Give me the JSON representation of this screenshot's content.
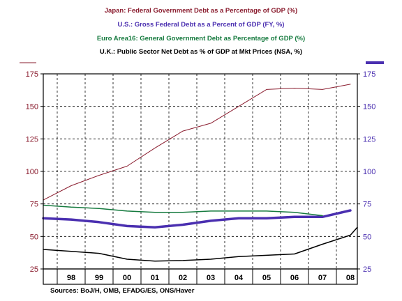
{
  "chart_data": {
    "type": "line",
    "legend": [
      {
        "label": "Japan: Federal Government Debt as a Percentage of GDP (%)",
        "color": "#8a1c2e"
      },
      {
        "label": "U.S.: Gross Federal Debt as a Percent of GDP (FY, %)",
        "color": "#4a2fb0"
      },
      {
        "label": "Euro Area16: General Government Debt as Percentage of GDP (%)",
        "color": "#157a3e"
      },
      {
        "label": "U.K.: Public Sector Net Debt as % of GDP at Mkt Prices (NSA, %)",
        "color": "#000000"
      }
    ],
    "categories": [
      "98",
      "99",
      "00",
      "01",
      "02",
      "03",
      "04",
      "05",
      "06",
      "07",
      "08"
    ],
    "x_range": [
      1997.5,
      2008.75
    ],
    "ylim": [
      25,
      175
    ],
    "yticks": [
      "25",
      "50",
      "75",
      "100",
      "125",
      "150",
      "175"
    ],
    "grid": true,
    "series": [
      {
        "name": "Japan",
        "color": "#8a1c2e",
        "width": 1,
        "x": [
          1997.5,
          1998.5,
          1999.5,
          2000.5,
          2001.5,
          2002.5,
          2003.5,
          2004.5,
          2005.5,
          2006.5,
          2007.5,
          2008.5
        ],
        "y": [
          78,
          89,
          97,
          104,
          118,
          131,
          137,
          150,
          163,
          164,
          163,
          167
        ]
      },
      {
        "name": "U.S.",
        "color": "#4a2fb0",
        "width": 3.5,
        "x": [
          1997.5,
          1998.5,
          1999.5,
          2000.5,
          2001.5,
          2002.5,
          2003.5,
          2004.5,
          2005.5,
          2006.5,
          2007.5,
          2008.5
        ],
        "y": [
          64,
          63,
          61,
          58,
          57,
          59,
          62,
          64,
          64,
          65,
          65,
          70
        ]
      },
      {
        "name": "Euro Area16",
        "color": "#157a3e",
        "width": 1.5,
        "x": [
          1997.5,
          1998.5,
          1999.5,
          2000.5,
          2001.5,
          2002.5,
          2003.5,
          2004.5,
          2005.5,
          2006.5,
          2007.5
        ],
        "y": [
          74,
          72.5,
          71.5,
          69.5,
          68.5,
          68.5,
          69.5,
          69.5,
          69.5,
          68.5,
          66
        ]
      },
      {
        "name": "U.K.",
        "color": "#000000",
        "width": 1.5,
        "x": [
          1997.5,
          1998.5,
          1999.5,
          2000.5,
          2001.5,
          2002.5,
          2003.5,
          2004.5,
          2005.5,
          2006.5,
          2007.5,
          2008.5,
          2008.75
        ],
        "y": [
          40,
          38.5,
          37,
          32.5,
          31,
          31.5,
          32.5,
          34.5,
          35.5,
          36.5,
          44,
          51,
          57
        ]
      }
    ],
    "source": "Sources:  BoJ/H, OMB, EFADG/ES, ONS/Haver"
  }
}
